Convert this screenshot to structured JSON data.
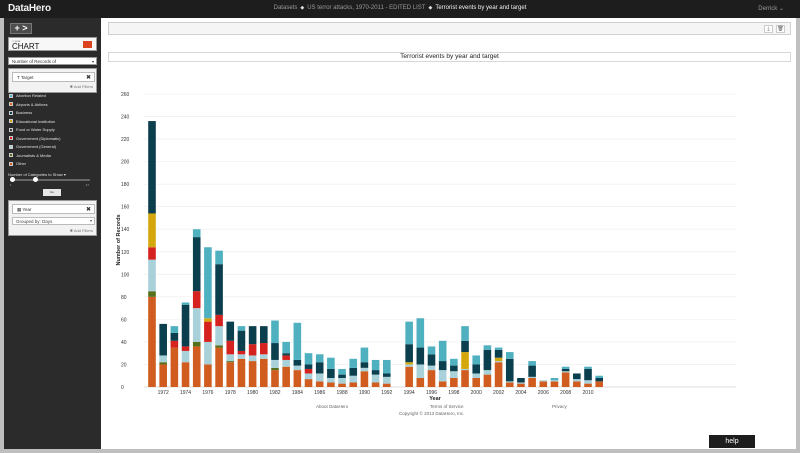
{
  "app": {
    "logo": "DataHero",
    "user": "Derrick"
  },
  "breadcrumb": {
    "datasets": "Datasets",
    "dataset": "US terror attacks, 1970-2011 - EDITED LIST",
    "current": "Terrorist events by year and target"
  },
  "sidebar": {
    "add_label": "+ >",
    "chart_type_caption": "< your",
    "chart_type": "CHART",
    "measure": "Number of Records of",
    "filter1": {
      "label": "Target",
      "add_filters": "Add Filters"
    },
    "legend": [
      {
        "label": "Abortion Related",
        "color": "#4fb0c0"
      },
      {
        "label": "Airports & Airlines",
        "color": "#e8610f"
      },
      {
        "label": "Business",
        "color": "#0c3f4e"
      },
      {
        "label": "Educational Institution",
        "color": "#d4a80d"
      },
      {
        "label": "Food or Water Supply",
        "color": "#3a3a3a"
      },
      {
        "label": "Government (Diplomatic)",
        "color": "#d6221f"
      },
      {
        "label": "Government (General)",
        "color": "#a9d1d9"
      },
      {
        "label": "Journalists & Media",
        "color": "#56701d"
      },
      {
        "label": "Other",
        "color": "#d05d1f"
      }
    ],
    "slider_label": "Number of Categories to Show",
    "slider_value": 9,
    "slider_min": "1",
    "slider_max": "27",
    "slider_tab": "Go",
    "filter2": {
      "label": "Year",
      "group_by": "Grouped by:  Days",
      "add_filters": "Add Filters"
    }
  },
  "toolbar": {
    "download_icon": "download-icon",
    "trash_icon": "trash-icon"
  },
  "footer": {
    "about": "About DataHero",
    "terms": "Terms of Service",
    "privacy": "Privacy",
    "copyright": "Copyright © 2013 DataHero, Inc."
  },
  "help_label": "help",
  "chart_data": {
    "type": "bar",
    "stacked": true,
    "title": "Terrorist events by year and target",
    "xlabel": "Year",
    "ylabel": "Number of Records",
    "ylim": [
      0,
      260
    ],
    "yticks": [
      0,
      20,
      40,
      60,
      80,
      100,
      120,
      140,
      160,
      180,
      200,
      220,
      240,
      260
    ],
    "grid": true,
    "categories": [
      1971,
      1972,
      1973,
      1974,
      1975,
      1976,
      1977,
      1978,
      1979,
      1980,
      1981,
      1982,
      1983,
      1984,
      1985,
      1986,
      1987,
      1988,
      1989,
      1990,
      1991,
      1992,
      1993,
      1994,
      1995,
      1996,
      1997,
      1998,
      1999,
      2000,
      2001,
      2002,
      2003,
      2004,
      2005,
      2006,
      2007,
      2008,
      2009,
      2010,
      2011
    ],
    "x_tick_labels": [
      "1972",
      "1974",
      "1976",
      "1978",
      "1980",
      "1982",
      "1984",
      "1986",
      "1988",
      "1990",
      "1992",
      "1994",
      "1996",
      "1998",
      "2000",
      "2002",
      "2004",
      "2006",
      "2008",
      "2010"
    ],
    "series": [
      {
        "name": "Other",
        "color": "#d05d1f",
        "values": [
          80,
          20,
          35,
          22,
          36,
          20,
          35,
          22,
          25,
          23,
          25,
          15,
          18,
          15,
          7,
          5,
          4,
          3,
          4,
          14,
          4,
          3,
          0,
          18,
          8,
          15,
          5,
          8,
          15,
          8,
          11,
          22,
          4,
          3,
          8,
          5,
          5,
          13,
          5,
          3,
          5
        ]
      },
      {
        "name": "Journalists & Media",
        "color": "#56701d",
        "values": [
          5,
          2,
          0,
          0,
          4,
          0,
          2,
          1,
          0,
          0,
          0,
          2,
          0,
          0,
          0,
          0,
          0,
          0,
          0,
          0,
          0,
          0,
          0,
          0,
          0,
          0,
          0,
          0,
          0,
          0,
          0,
          0,
          0,
          0,
          0,
          0,
          0,
          0,
          0,
          0,
          0
        ]
      },
      {
        "name": "Government (General)",
        "color": "#a9d1d9",
        "values": [
          28,
          6,
          0,
          10,
          30,
          20,
          17,
          6,
          4,
          5,
          4,
          7,
          6,
          4,
          5,
          7,
          4,
          5,
          6,
          3,
          7,
          6,
          0,
          2,
          12,
          4,
          10,
          6,
          1,
          4,
          4,
          1,
          1,
          1,
          1,
          1,
          1,
          1,
          2,
          3,
          0
        ]
      },
      {
        "name": "Government (Diplomatic)",
        "color": "#d6221f",
        "values": [
          11,
          0,
          6,
          4,
          15,
          18,
          10,
          12,
          3,
          10,
          10,
          0,
          4,
          0,
          4,
          0,
          0,
          0,
          0,
          0,
          0,
          0,
          0,
          0,
          0,
          0,
          0,
          0,
          0,
          0,
          0,
          0,
          0,
          0,
          0,
          0,
          0,
          0,
          0,
          0,
          0
        ]
      },
      {
        "name": "Food or Water Supply",
        "color": "#3a3a3a",
        "values": [
          0,
          0,
          0,
          0,
          0,
          0,
          0,
          0,
          0,
          0,
          0,
          0,
          0,
          0,
          0,
          0,
          0,
          0,
          0,
          0,
          0,
          0,
          0,
          0,
          0,
          0,
          0,
          0,
          0,
          0,
          0,
          0,
          0,
          0,
          0,
          0,
          0,
          0,
          0,
          0,
          0
        ]
      },
      {
        "name": "Educational Institution",
        "color": "#d4a80d",
        "values": [
          30,
          0,
          0,
          0,
          0,
          3,
          0,
          0,
          0,
          0,
          0,
          0,
          0,
          0,
          0,
          0,
          0,
          0,
          0,
          0,
          0,
          0,
          0,
          2,
          0,
          0,
          0,
          0,
          15,
          0,
          0,
          3,
          0,
          0,
          0,
          0,
          0,
          0,
          0,
          0,
          0
        ]
      },
      {
        "name": "Business",
        "color": "#0c3f4e",
        "values": [
          82,
          28,
          7,
          37,
          48,
          0,
          45,
          17,
          18,
          16,
          15,
          15,
          2,
          5,
          4,
          10,
          8,
          3,
          7,
          5,
          4,
          3,
          0,
          16,
          15,
          10,
          8,
          5,
          10,
          8,
          18,
          7,
          20,
          4,
          10,
          0,
          0,
          2,
          5,
          10,
          3
        ]
      },
      {
        "name": "Airports & Airlines",
        "color": "#e8610f",
        "values": [
          0,
          0,
          0,
          0,
          0,
          0,
          0,
          0,
          0,
          0,
          0,
          0,
          0,
          0,
          0,
          0,
          0,
          0,
          0,
          0,
          0,
          0,
          0,
          0,
          0,
          0,
          0,
          0,
          0,
          0,
          0,
          0,
          0,
          0,
          0,
          0,
          0,
          0,
          0,
          0,
          0
        ]
      },
      {
        "name": "Abortion Related",
        "color": "#4fb0c0",
        "values": [
          0,
          0,
          6,
          2,
          7,
          63,
          12,
          0,
          4,
          0,
          0,
          20,
          10,
          33,
          10,
          7,
          10,
          5,
          8,
          13,
          9,
          12,
          0,
          20,
          26,
          7,
          18,
          6,
          13,
          8,
          4,
          2,
          6,
          0,
          4,
          0,
          2,
          2,
          0,
          2,
          2
        ]
      }
    ]
  }
}
